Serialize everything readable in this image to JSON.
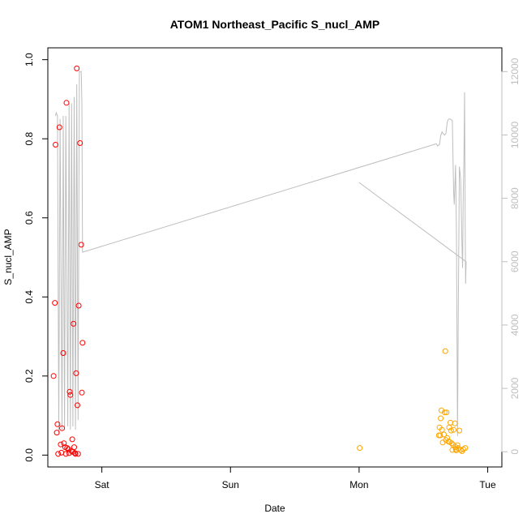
{
  "chart_data": {
    "type": "scatter",
    "title": "ATOM1 Northeast_Pacific S_nucl_AMP",
    "xlabel": "Date",
    "ylabel": "S_nucl_AMP",
    "xlim_days": [
      -0.42,
      3.11
    ],
    "x_ticks": [
      {
        "day": 0,
        "label": "Sat"
      },
      {
        "day": 1,
        "label": "Sun"
      },
      {
        "day": 2,
        "label": "Mon"
      },
      {
        "day": 3,
        "label": "Tue"
      }
    ],
    "ylim": [
      -0.03,
      1.03
    ],
    "y_ticks": [
      0.0,
      0.2,
      0.4,
      0.6,
      0.8,
      1.0
    ],
    "y2lim": [
      -480,
      12750
    ],
    "y2_ticks": [
      0,
      2000,
      4000,
      6000,
      8000,
      10000,
      12000
    ],
    "grid": false,
    "colors": {
      "series_red": "#ff0000",
      "series_orange": "#ffa500",
      "altitude_line": "#bebebe",
      "axis": "#000000",
      "axis_right": "#bebebe"
    },
    "series": [
      {
        "color": "#ff0000",
        "points": [
          [
            -0.375,
            0.2
          ],
          [
            -0.365,
            0.385
          ],
          [
            -0.36,
            0.785
          ],
          [
            -0.35,
            0.057
          ],
          [
            -0.345,
            0.078
          ],
          [
            -0.34,
            0.003
          ],
          [
            -0.33,
            0.829
          ],
          [
            -0.32,
            0.027
          ],
          [
            -0.315,
            0.006
          ],
          [
            -0.31,
            0.068
          ],
          [
            -0.3,
            0.258
          ],
          [
            -0.295,
            0.03
          ],
          [
            -0.285,
            0.02
          ],
          [
            -0.28,
            0.003
          ],
          [
            -0.275,
            0.891
          ],
          [
            -0.27,
            0.018
          ],
          [
            -0.26,
            0.015
          ],
          [
            -0.255,
            0.005
          ],
          [
            -0.25,
            0.16
          ],
          [
            -0.245,
            0.152
          ],
          [
            -0.235,
            0.01
          ],
          [
            -0.23,
            0.04
          ],
          [
            -0.225,
            0.008
          ],
          [
            -0.22,
            0.332
          ],
          [
            -0.215,
            0.02
          ],
          [
            -0.21,
            0.005
          ],
          [
            -0.205,
            0.003
          ],
          [
            -0.2,
            0.207
          ],
          [
            -0.195,
            0.978
          ],
          [
            -0.19,
            0.126
          ],
          [
            -0.185,
            0.003
          ],
          [
            -0.18,
            0.378
          ],
          [
            -0.17,
            0.789
          ],
          [
            -0.16,
            0.532
          ],
          [
            -0.155,
            0.158
          ],
          [
            -0.15,
            0.284
          ]
        ]
      },
      {
        "color": "#ffa500",
        "points": [
          [
            2.005,
            0.018
          ],
          [
            2.62,
            0.05
          ],
          [
            2.625,
            0.07
          ],
          [
            2.63,
            0.05
          ],
          [
            2.635,
            0.093
          ],
          [
            2.64,
            0.113
          ],
          [
            2.645,
            0.064
          ],
          [
            2.65,
            0.032
          ],
          [
            2.66,
            0.052
          ],
          [
            2.665,
            0.108
          ],
          [
            2.67,
            0.263
          ],
          [
            2.675,
            0.038
          ],
          [
            2.68,
            0.108
          ],
          [
            2.685,
            0.043
          ],
          [
            2.695,
            0.034
          ],
          [
            2.7,
            0.07
          ],
          [
            2.705,
            0.033
          ],
          [
            2.71,
            0.082
          ],
          [
            2.715,
            0.062
          ],
          [
            2.72,
            0.03
          ],
          [
            2.725,
            0.013
          ],
          [
            2.73,
            0.026
          ],
          [
            2.735,
            0.064
          ],
          [
            2.745,
            0.08
          ],
          [
            2.75,
            0.02
          ],
          [
            2.752,
            0.015
          ],
          [
            2.755,
            0.012
          ],
          [
            2.765,
            0.025
          ],
          [
            2.77,
            0.018
          ],
          [
            2.78,
            0.062
          ],
          [
            2.79,
            0.013
          ],
          [
            2.8,
            0.01
          ],
          [
            2.81,
            0.015
          ],
          [
            2.825,
            0.018
          ]
        ]
      }
    ],
    "altitude_line": {
      "color": "#bebebe",
      "points": [
        [
          -0.36,
          10600
        ],
        [
          -0.355,
          10700
        ],
        [
          -0.345,
          10600
        ],
        [
          -0.335,
          600
        ],
        [
          -0.325,
          10500
        ],
        [
          -0.31,
          700
        ],
        [
          -0.3,
          10600
        ],
        [
          -0.29,
          700
        ],
        [
          -0.28,
          10600
        ],
        [
          -0.265,
          800
        ],
        [
          -0.255,
          11000
        ],
        [
          -0.245,
          700
        ],
        [
          -0.235,
          11000
        ],
        [
          -0.225,
          800
        ],
        [
          -0.215,
          11200
        ],
        [
          -0.205,
          700
        ],
        [
          -0.195,
          11600
        ],
        [
          -0.185,
          1000
        ],
        [
          -0.175,
          12000
        ],
        [
          -0.16,
          12000
        ],
        [
          -0.155,
          11000
        ],
        [
          -0.15,
          6300
        ],
        [
          2.6,
          9720
        ],
        [
          2.61,
          9650
        ],
        [
          2.625,
          9700
        ],
        [
          2.635,
          9980
        ],
        [
          2.645,
          10100
        ],
        [
          2.655,
          10030
        ],
        [
          2.665,
          10000
        ],
        [
          2.675,
          10050
        ],
        [
          2.685,
          10400
        ],
        [
          2.695,
          10500
        ],
        [
          2.71,
          10500
        ],
        [
          2.725,
          10450
        ],
        [
          2.735,
          8200
        ],
        [
          2.74,
          7800
        ],
        [
          2.75,
          9050
        ],
        [
          2.757,
          6800
        ],
        [
          2.762,
          3000
        ],
        [
          2.765,
          500
        ],
        [
          2.77,
          3800
        ],
        [
          2.78,
          9000
        ],
        [
          2.79,
          8600
        ],
        [
          2.8,
          6500
        ],
        [
          2.805,
          5800
        ],
        [
          2.81,
          8200
        ],
        [
          2.815,
          9200
        ],
        [
          2.82,
          11350
        ],
        [
          2.825,
          7000
        ],
        [
          2.828,
          5300
        ],
        [
          2.832,
          6000
        ],
        [
          2.0,
          8500
        ]
      ]
    }
  }
}
